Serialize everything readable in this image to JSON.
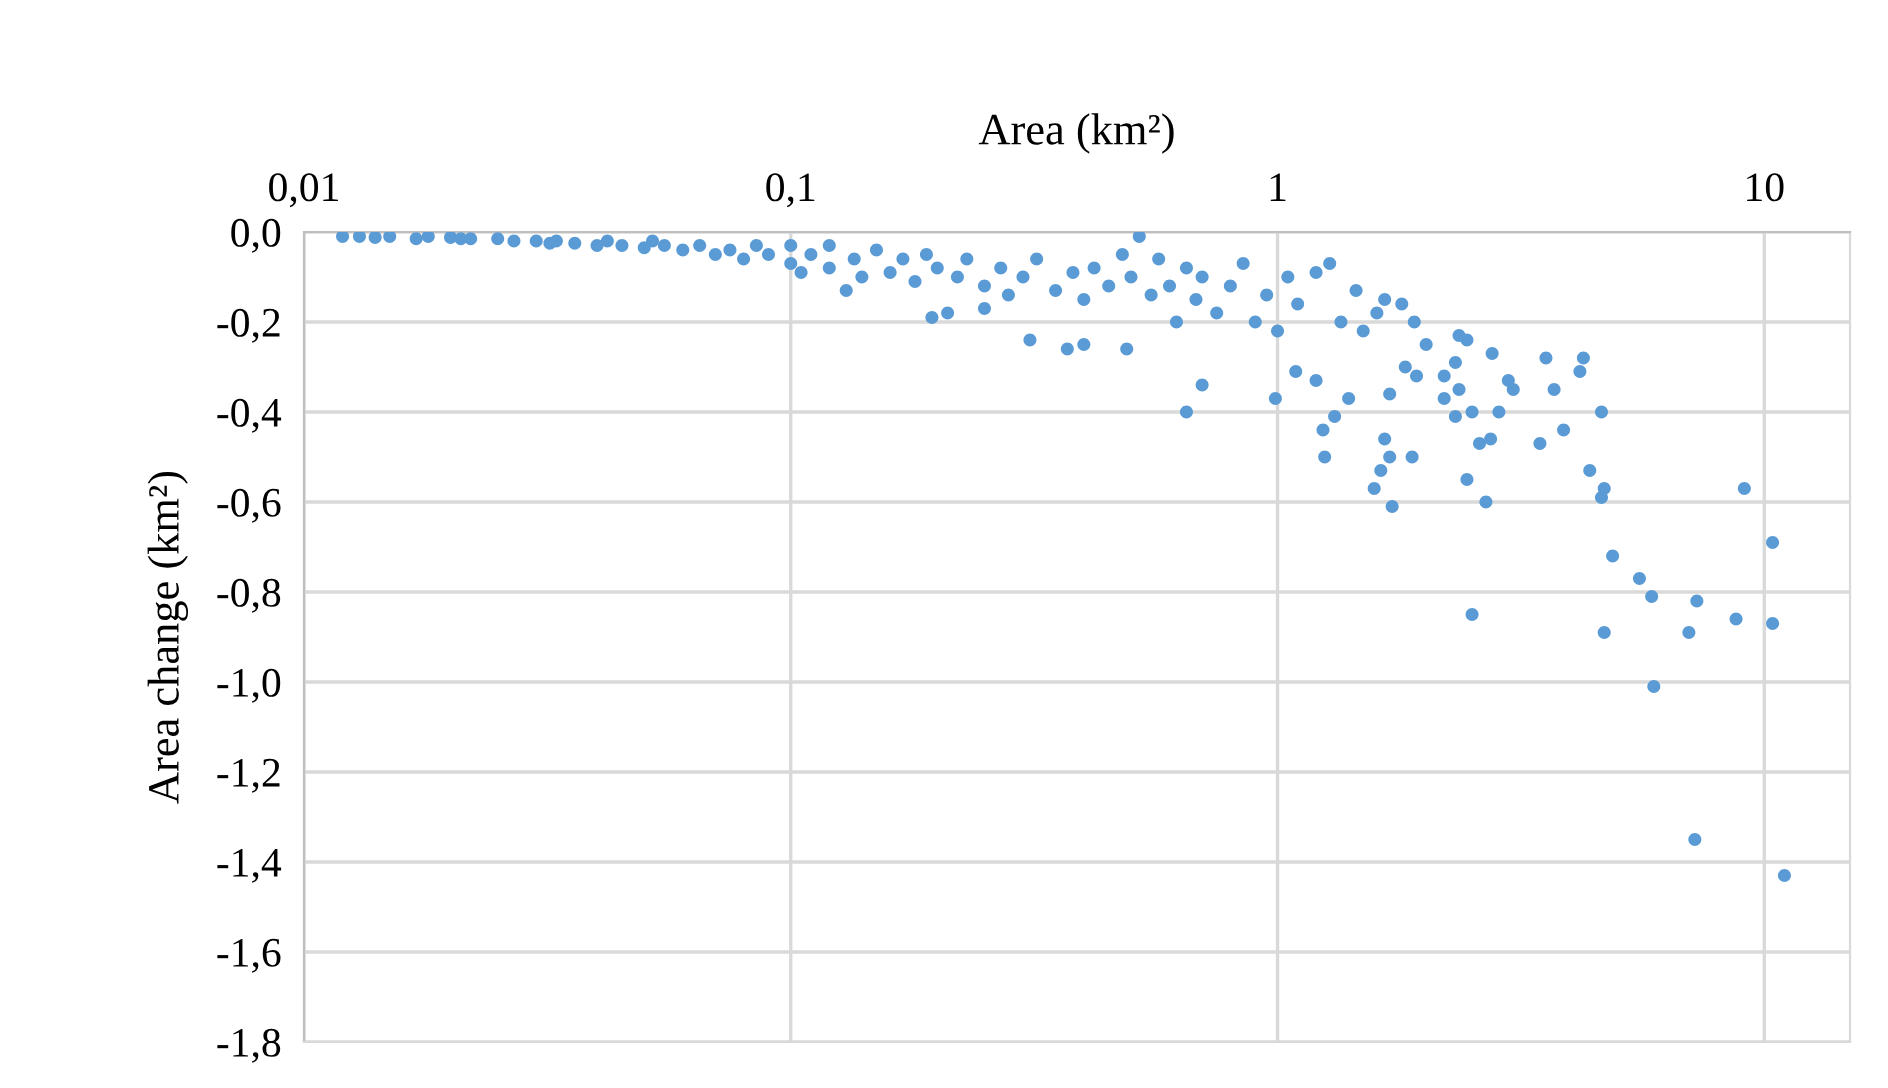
{
  "chart_data": {
    "type": "scatter",
    "xlabel": "Area (km²)",
    "ylabel": "Area change (km²)",
    "log": "x",
    "xlim": [
      0.01,
      15
    ],
    "xticks": [
      {
        "value": 0.01,
        "label": "0,01"
      },
      {
        "value": 0.1,
        "label": "0,1"
      },
      1,
      10
    ],
    "ylim": [
      -1.8,
      0
    ],
    "yticks": [
      {
        "value": 0,
        "label": "0,0"
      },
      {
        "value": -0.2,
        "label": "-0,2"
      },
      {
        "value": -0.4,
        "label": "-0,4"
      },
      {
        "value": -0.6,
        "label": "-0,6"
      },
      {
        "value": -0.8,
        "label": "-0,8"
      },
      {
        "value": -1.0,
        "label": "-1,0"
      },
      {
        "value": -1.2,
        "label": "-1,2"
      },
      {
        "value": -1.4,
        "label": "-1,4"
      },
      {
        "value": -1.6,
        "label": "-1,6"
      },
      {
        "value": -1.8,
        "label": "-1,8"
      }
    ],
    "grid": true,
    "marker": "circle",
    "series": [
      {
        "color": "#5b9bd5",
        "x": [
          0.012,
          0.013,
          0.014,
          0.015,
          0.017,
          0.018,
          0.02,
          0.021,
          0.022,
          0.025,
          0.027,
          0.03,
          0.032,
          0.033,
          0.036,
          0.04,
          0.042,
          0.045,
          0.05,
          0.052,
          0.055,
          0.06,
          0.065,
          0.07,
          0.075,
          0.08,
          0.085,
          0.09,
          0.1,
          0.1,
          0.105,
          0.11,
          0.12,
          0.12,
          0.13,
          0.135,
          0.14,
          0.15,
          0.16,
          0.17,
          0.18,
          0.19,
          0.195,
          0.2,
          0.21,
          0.22,
          0.23,
          0.25,
          0.25,
          0.27,
          0.28,
          0.3,
          0.31,
          0.32,
          0.35,
          0.37,
          0.38,
          0.4,
          0.4,
          0.42,
          0.45,
          0.48,
          0.49,
          0.5,
          0.52,
          0.55,
          0.57,
          0.6,
          0.62,
          0.65,
          0.65,
          0.68,
          0.7,
          0.7,
          0.75,
          0.8,
          0.85,
          0.9,
          0.95,
          0.99,
          1.0,
          1.05,
          1.09,
          1.1,
          1.2,
          1.2,
          1.24,
          1.25,
          1.28,
          1.31,
          1.35,
          1.4,
          1.45,
          1.5,
          1.58,
          1.6,
          1.63,
          1.66,
          1.66,
          1.7,
          1.7,
          1.72,
          1.8,
          1.83,
          1.89,
          1.91,
          1.93,
          2.02,
          2.2,
          2.2,
          2.32,
          2.32,
          2.36,
          2.36,
          2.45,
          2.45,
          2.51,
          2.51,
          2.6,
          2.68,
          2.74,
          2.76,
          2.85,
          2.98,
          3.05,
          3.46,
          3.56,
          3.7,
          3.87,
          4.18,
          4.25,
          4.38,
          4.63,
          4.63,
          4.69,
          4.69,
          4.88,
          5.54,
          5.87,
          5.93,
          7.0,
          7.2,
          7.27,
          8.75,
          9.1,
          10.4,
          10.4,
          11.0
        ],
        "values": [
          -0.01,
          -0.01,
          -0.012,
          -0.01,
          -0.015,
          -0.01,
          -0.012,
          -0.015,
          -0.015,
          -0.015,
          -0.02,
          -0.02,
          -0.025,
          -0.02,
          -0.025,
          -0.03,
          -0.02,
          -0.03,
          -0.035,
          -0.02,
          -0.03,
          -0.04,
          -0.03,
          -0.05,
          -0.04,
          -0.06,
          -0.03,
          -0.05,
          -0.07,
          -0.03,
          -0.09,
          -0.05,
          -0.08,
          -0.03,
          -0.13,
          -0.06,
          -0.1,
          -0.04,
          -0.09,
          -0.06,
          -0.11,
          -0.05,
          -0.19,
          -0.08,
          -0.18,
          -0.1,
          -0.06,
          -0.17,
          -0.12,
          -0.08,
          -0.14,
          -0.1,
          -0.24,
          -0.06,
          -0.13,
          -0.26,
          -0.09,
          -0.25,
          -0.15,
          -0.08,
          -0.12,
          -0.05,
          -0.26,
          -0.1,
          -0.01,
          -0.14,
          -0.06,
          -0.12,
          -0.2,
          -0.4,
          -0.08,
          -0.15,
          -0.34,
          -0.1,
          -0.18,
          -0.12,
          -0.07,
          -0.2,
          -0.14,
          -0.37,
          -0.22,
          -0.1,
          -0.31,
          -0.16,
          -0.33,
          -0.09,
          -0.44,
          -0.5,
          -0.07,
          -0.41,
          -0.2,
          -0.37,
          -0.13,
          -0.22,
          -0.57,
          -0.18,
          -0.53,
          -0.46,
          -0.15,
          -0.5,
          -0.36,
          -0.61,
          -0.16,
          -0.3,
          -0.5,
          -0.2,
          -0.32,
          -0.25,
          -0.32,
          -0.37,
          -0.29,
          -0.41,
          -0.23,
          -0.35,
          -0.24,
          -0.55,
          -0.4,
          -0.85,
          -0.47,
          -0.6,
          -0.46,
          -0.27,
          -0.4,
          -0.33,
          -0.35,
          -0.47,
          -0.28,
          -0.35,
          -0.44,
          -0.31,
          -0.28,
          -0.53,
          -0.4,
          -0.59,
          -0.57,
          -0.89,
          -0.72,
          -0.77,
          -0.81,
          -1.01,
          -0.89,
          -1.35,
          -0.82,
          -0.86,
          -0.57,
          -0.69,
          -0.87,
          -1.43
        ]
      }
    ]
  }
}
